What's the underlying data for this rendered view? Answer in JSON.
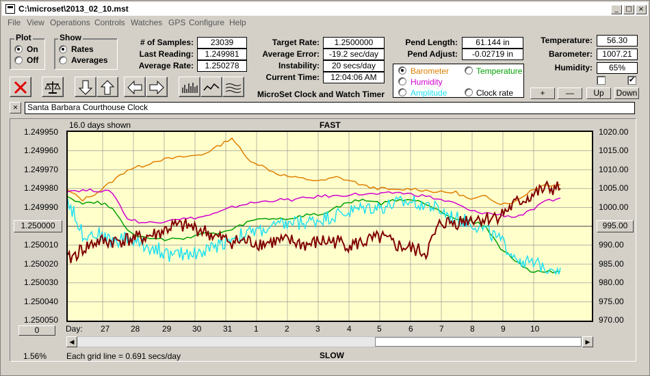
{
  "window": {
    "title": "C:\\microset\\2013_02_10.mst",
    "min_label": "_",
    "max_label": "□",
    "close_label": "×"
  },
  "menu": [
    "File",
    "View",
    "Operations",
    "Controls",
    "Watches",
    "GPS",
    "Configure",
    "Help"
  ],
  "plot_group": {
    "title": "Plot",
    "on": "On",
    "off": "Off",
    "selected": "On"
  },
  "show_group": {
    "title": "Show",
    "rates": "Rates",
    "averages": "Averages",
    "selected": "Rates"
  },
  "stats": {
    "samples_label": "# of Samples:",
    "samples_value": "23039",
    "last_reading_label": "Last Reading:",
    "last_reading_value": "1.249981",
    "average_rate_label": "Average Rate:",
    "average_rate_value": "1.250278",
    "target_rate_label": "Target Rate:",
    "target_rate_value": "1.2500000",
    "average_error_label": "Average Error:",
    "average_error_value": "-19.2 sec/day",
    "instability_label": "Instability:",
    "instability_value": "20 secs/day",
    "current_time_label": "Current Time:",
    "current_time_value": "12:04:06 AM",
    "pend_length_label": "Pend Length:",
    "pend_length_value": "61.144 in",
    "pend_adjust_label": "Pend Adjust:",
    "pend_adjust_value": "-0.02719 in",
    "temperature_label": "Temperature:",
    "temperature_value": "56.30",
    "barometer_label": "Barometer:",
    "barometer_value": "1007.21",
    "humidity_label": "Humidity:",
    "humidity_value": "65%"
  },
  "app_caption": "MicroSet Clock and Watch Timer",
  "sensor_select": {
    "barometer": "Barometer",
    "temperature": "Temperature",
    "humidity": "Humidity",
    "amplitude": "Amplitude",
    "clock_rate": "Clock rate",
    "selected": "Barometer"
  },
  "scale_buttons": {
    "plus": "+",
    "minus": "—",
    "up": "Up",
    "down": "Down"
  },
  "checkboxes": {
    "left_checked": false,
    "right_checked": true
  },
  "clock_name": {
    "close_label": "×",
    "value": "Santa Barbara Courthouse Clock"
  },
  "colors": {
    "barometer": "#e07f00",
    "temperature": "#00a000",
    "humidity": "#d000d0",
    "amplitude": "#20e0f0",
    "clock_rate": "#800000",
    "plot_bg": "#ffffcc"
  },
  "chart_data": {
    "type": "line",
    "title_top": "FAST",
    "title_bottom": "SLOW",
    "days_shown": "16.0 days shown",
    "grid_note": "Each grid line = 0.691 secs/day",
    "percent": "1.56%",
    "left_center_button": "1.250000",
    "right_center_button": "995.00",
    "left_bottom_button": "0",
    "day_label": "Day:",
    "left_axis_ticks": [
      "1.249950",
      "1.249960",
      "1.249970",
      "1.249980",
      "1.249990",
      "1.250000",
      "1.250010",
      "1.250020",
      "1.250030",
      "1.250040",
      "1.250050"
    ],
    "right_axis_ticks": [
      "1020.00",
      "1015.00",
      "1010.00",
      "1005.00",
      "1000.00",
      "995.00",
      "990.00",
      "985.00",
      "980.00",
      "975.00",
      "970.00"
    ],
    "x_ticks": [
      "27",
      "28",
      "29",
      "30",
      "31",
      "1",
      "2",
      "3",
      "4",
      "5",
      "6",
      "7",
      "8",
      "9",
      "10"
    ],
    "right_ylim": [
      970,
      1020
    ],
    "series": [
      {
        "name": "Barometer",
        "color_key": "barometer",
        "axis": "right",
        "values": [
          1004.5,
          1002,
          1004,
          1007,
          1010,
          1011,
          1012.5,
          1013,
          1013.5,
          1014,
          1016,
          1018.5,
          1013,
          1011,
          1009,
          1008,
          1007.5,
          1007,
          1008,
          1007,
          1005.5,
          1005,
          1004.5,
          1005,
          1004.5,
          1004,
          1004,
          1002,
          1003,
          1001,
          1001.5,
          1004.5,
          1006,
          1006
        ]
      },
      {
        "name": "Humidity",
        "axis": "right",
        "color_key": "humidity",
        "values": [
          1004.5,
          1004.5,
          1004.5,
          1004,
          997,
          996,
          996,
          997,
          997,
          997.5,
          998.5,
          1000,
          1001,
          1001.5,
          1002,
          1002,
          1002.5,
          1003,
          1003,
          1003.5,
          1003.5,
          1003.5,
          1004,
          1003.5,
          1003,
          1002,
          1001,
          999,
          998.5,
          998,
          997.5,
          999,
          1001.5,
          1002.5
        ]
      },
      {
        "name": "Temperature",
        "axis": "right",
        "color_key": "temperature",
        "values": [
          1003,
          1001,
          1001.5,
          1000,
          994,
          992,
          991.5,
          991.5,
          992,
          993,
          993,
          994,
          996,
          997,
          997,
          997,
          998,
          998,
          1000,
          1001.5,
          1002,
          1001,
          1002,
          1002,
          1001,
          999,
          997,
          996.5,
          995,
          989,
          986,
          983,
          983,
          983
        ]
      },
      {
        "name": "Amplitude",
        "axis": "right",
        "color_key": "amplitude",
        "values": [
          1002,
          993,
          993,
          991,
          992,
          990,
          989,
          987,
          988,
          988,
          990,
          992,
          993,
          994,
          995,
          996,
          996,
          997,
          998,
          999,
          1000,
          1000,
          1001,
          1001.5,
          1001,
          999,
          997,
          996,
          994,
          991,
          987,
          985,
          984.5,
          984
        ]
      },
      {
        "name": "Clock rate",
        "axis": "right",
        "color_key": "clock_rate",
        "values": [
          986,
          989,
          991,
          991,
          991.5,
          992,
          993,
          995,
          995,
          994,
          992,
          991,
          991,
          990.5,
          991,
          991,
          990,
          991,
          991,
          990,
          991,
          992,
          990,
          989,
          988,
          996,
          996,
          997,
          997,
          998,
          1001,
          1003,
          1005,
          1005
        ]
      }
    ]
  }
}
